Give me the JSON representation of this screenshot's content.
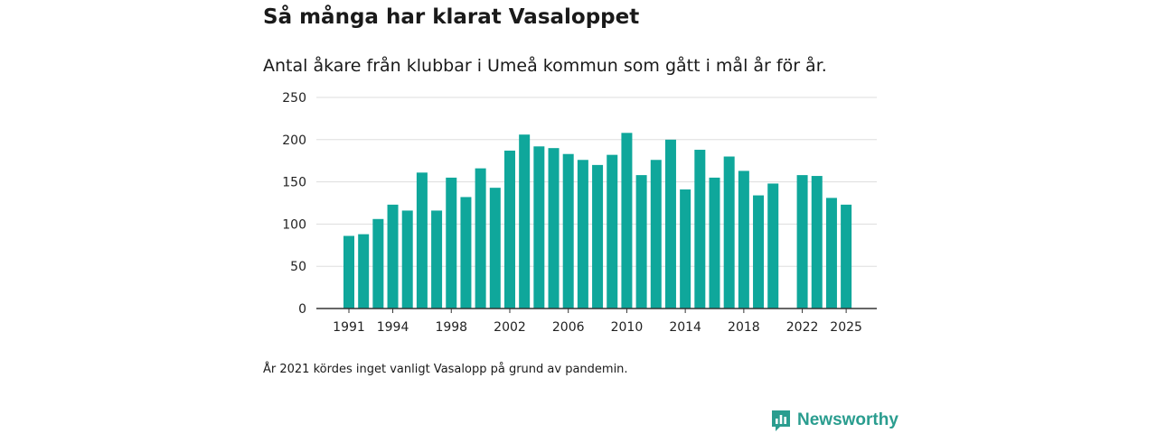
{
  "header": {
    "title": "Så många har klarat Vasaloppet",
    "subtitle": "Antal åkare från klubbar i Umeå kommun som gått i mål år för år."
  },
  "footer": {
    "note": "År 2021 kördes inget vanligt Vasalopp på grund av pandemin.",
    "brand": "Newsworthy"
  },
  "colors": {
    "bar": "#0fa79b",
    "grid": "#dddddd",
    "axis": "#333333",
    "brand": "#2a9d8f"
  },
  "icons": {
    "logo": "newsworthy-logo-icon"
  },
  "chart_data": {
    "type": "bar",
    "title": "Så många har klarat Vasaloppet",
    "xlabel": "",
    "ylabel": "",
    "ylim": [
      0,
      250
    ],
    "yticks": [
      0,
      50,
      100,
      150,
      200,
      250
    ],
    "xtick_labels": [
      "1991",
      "1994",
      "1998",
      "2002",
      "2006",
      "2010",
      "2014",
      "2018",
      "2022",
      "2025"
    ],
    "grid": true,
    "categories": [
      "1991",
      "1992",
      "1993",
      "1994",
      "1995",
      "1996",
      "1997",
      "1998",
      "1999",
      "2000",
      "2001",
      "2002",
      "2003",
      "2004",
      "2005",
      "2006",
      "2007",
      "2008",
      "2009",
      "2010",
      "2011",
      "2012",
      "2013",
      "2014",
      "2015",
      "2016",
      "2017",
      "2018",
      "2019",
      "2020",
      "2021",
      "2022",
      "2023",
      "2024",
      "2025"
    ],
    "values": [
      86,
      88,
      106,
      123,
      116,
      161,
      116,
      155,
      132,
      166,
      143,
      187,
      206,
      192,
      190,
      183,
      176,
      170,
      182,
      208,
      158,
      176,
      200,
      141,
      188,
      155,
      180,
      163,
      134,
      148,
      null,
      158,
      157,
      131,
      123
    ]
  }
}
